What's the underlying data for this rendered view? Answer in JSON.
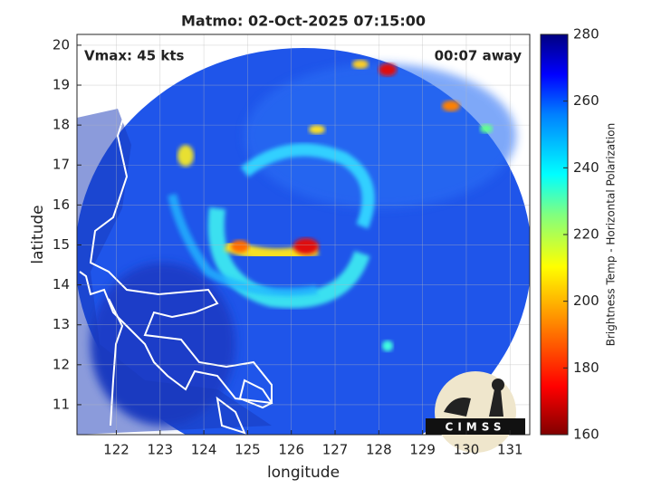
{
  "title": "Matmo: 02-Oct-2025 07:15:00",
  "annotations": {
    "vmax": "Vmax: 45 kts",
    "time_away": "00:07 away"
  },
  "map": {
    "xlabel": "longitude",
    "ylabel": "latitude",
    "xlim": [
      121.1,
      131.45
    ],
    "ylim": [
      10.25,
      20.27
    ],
    "xticks": [
      122,
      123,
      124,
      125,
      126,
      127,
      128,
      129,
      130,
      131
    ],
    "yticks": [
      11,
      12,
      13,
      14,
      15,
      16,
      17,
      18,
      19,
      20
    ],
    "grid": true
  },
  "colorbar": {
    "label": "Brightness Temp - Horizontal Polarization",
    "clim": [
      160,
      280
    ],
    "ticks": [
      160,
      180,
      200,
      220,
      240,
      260,
      280
    ]
  },
  "logo": "CIMSS"
}
